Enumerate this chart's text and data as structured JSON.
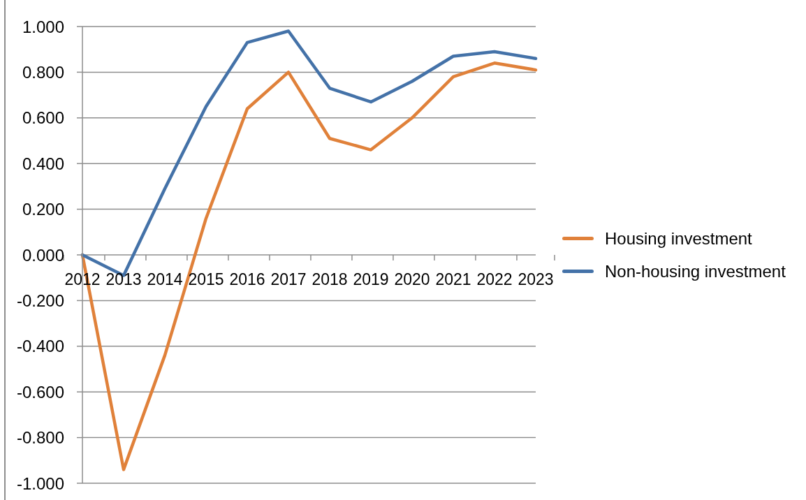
{
  "chart_data": {
    "type": "line",
    "categories": [
      "2012",
      "2013",
      "2014",
      "2015",
      "2016",
      "2017",
      "2018",
      "2019",
      "2020",
      "2021",
      "2022",
      "2023"
    ],
    "series": [
      {
        "name": "Housing investment",
        "color": "#e0813a",
        "values": [
          0,
          -0.94,
          -0.44,
          0.16,
          0.64,
          0.8,
          0.51,
          0.46,
          0.6,
          0.78,
          0.84,
          0.81
        ]
      },
      {
        "name": "Non-housing investment",
        "color": "#4472a8",
        "values": [
          0,
          -0.09,
          0.29,
          0.65,
          0.93,
          0.98,
          0.73,
          0.67,
          0.76,
          0.87,
          0.89,
          0.86
        ]
      }
    ],
    "ylim": [
      -1,
      1
    ],
    "yticks": [
      {
        "value": -1,
        "label": "-1.000"
      },
      {
        "value": -0.8,
        "label": "-0.800"
      },
      {
        "value": -0.6,
        "label": "-0.600"
      },
      {
        "value": -0.4,
        "label": "-0.400"
      },
      {
        "value": -0.2,
        "label": "-0.200"
      },
      {
        "value": 0,
        "label": "0.000"
      },
      {
        "value": 0.2,
        "label": "0.200"
      },
      {
        "value": 0.4,
        "label": "0.400"
      },
      {
        "value": 0.6,
        "label": "0.600"
      },
      {
        "value": 0.8,
        "label": "0.800"
      },
      {
        "value": 1,
        "label": "1.000"
      }
    ],
    "grid": "y",
    "legend": "right"
  }
}
